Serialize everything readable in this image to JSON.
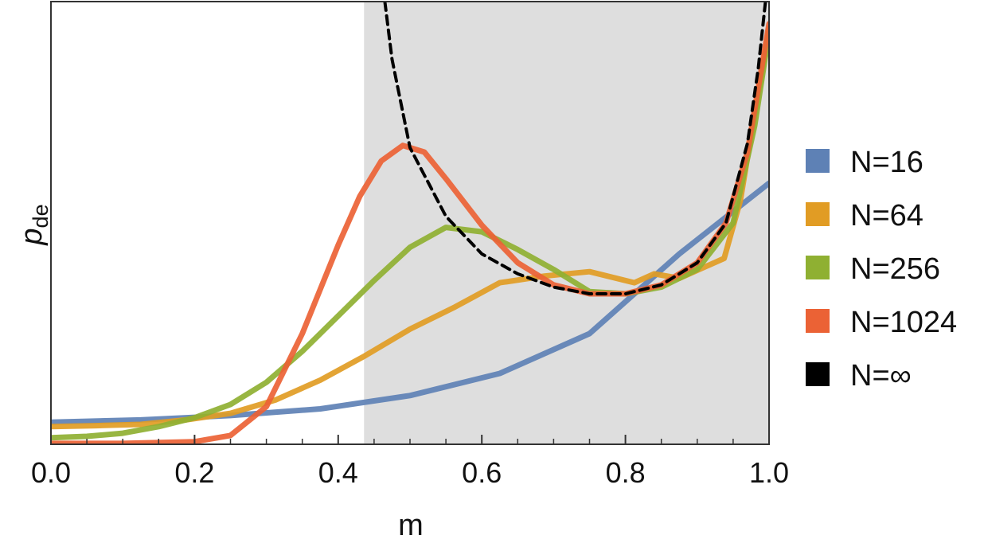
{
  "chart_data": {
    "type": "line",
    "xlabel": "m",
    "ylabel": "p",
    "ylabel_sub": "de",
    "xlim": [
      0,
      1
    ],
    "ylim": [
      0,
      1
    ],
    "x_ticks": [
      "0.0",
      "0.2",
      "0.4",
      "0.6",
      "0.8",
      "1.0"
    ],
    "x_tick_values": [
      0,
      0.2,
      0.4,
      0.6,
      0.8,
      1.0
    ],
    "shaded_region": {
      "x": [
        0.436,
        1.0
      ],
      "color": "#dedede"
    },
    "legend_position": "right",
    "series": [
      {
        "name": "N=16",
        "color": "#5e81b5",
        "style": "solid",
        "points": [
          [
            0,
            0.05
          ],
          [
            0.125,
            0.055
          ],
          [
            0.25,
            0.065
          ],
          [
            0.375,
            0.08
          ],
          [
            0.5,
            0.11
          ],
          [
            0.625,
            0.16
          ],
          [
            0.75,
            0.25
          ],
          [
            0.875,
            0.43
          ],
          [
            1.0,
            0.59
          ]
        ]
      },
      {
        "name": "N=64",
        "color": "#e19c24",
        "style": "solid",
        "points": [
          [
            0,
            0.04
          ],
          [
            0.0625,
            0.042
          ],
          [
            0.125,
            0.045
          ],
          [
            0.1875,
            0.055
          ],
          [
            0.25,
            0.07
          ],
          [
            0.3125,
            0.1
          ],
          [
            0.375,
            0.145
          ],
          [
            0.4375,
            0.2
          ],
          [
            0.5,
            0.26
          ],
          [
            0.5625,
            0.31
          ],
          [
            0.625,
            0.365
          ],
          [
            0.6875,
            0.38
          ],
          [
            0.75,
            0.39
          ],
          [
            0.8125,
            0.365
          ],
          [
            0.84,
            0.385
          ],
          [
            0.875,
            0.375
          ],
          [
            0.9375,
            0.42
          ],
          [
            0.96,
            0.55
          ],
          [
            1.0,
            0.94
          ]
        ]
      },
      {
        "name": "N=256",
        "color": "#8fb032",
        "style": "solid",
        "points": [
          [
            0,
            0.015
          ],
          [
            0.05,
            0.018
          ],
          [
            0.1,
            0.025
          ],
          [
            0.15,
            0.04
          ],
          [
            0.2,
            0.06
          ],
          [
            0.25,
            0.09
          ],
          [
            0.3,
            0.14
          ],
          [
            0.35,
            0.21
          ],
          [
            0.4,
            0.29
          ],
          [
            0.45,
            0.37
          ],
          [
            0.5,
            0.445
          ],
          [
            0.55,
            0.49
          ],
          [
            0.6,
            0.48
          ],
          [
            0.65,
            0.44
          ],
          [
            0.7,
            0.395
          ],
          [
            0.75,
            0.345
          ],
          [
            0.8,
            0.34
          ],
          [
            0.85,
            0.355
          ],
          [
            0.9,
            0.395
          ],
          [
            0.95,
            0.5
          ],
          [
            0.98,
            0.72
          ],
          [
            1.0,
            0.93
          ]
        ]
      },
      {
        "name": "N=1024",
        "color": "#eb6235",
        "style": "solid",
        "points": [
          [
            0,
            0.002
          ],
          [
            0.1,
            0.002
          ],
          [
            0.2,
            0.006
          ],
          [
            0.25,
            0.02
          ],
          [
            0.3,
            0.085
          ],
          [
            0.35,
            0.25
          ],
          [
            0.4,
            0.45
          ],
          [
            0.43,
            0.56
          ],
          [
            0.46,
            0.64
          ],
          [
            0.49,
            0.675
          ],
          [
            0.52,
            0.66
          ],
          [
            0.55,
            0.6
          ],
          [
            0.6,
            0.495
          ],
          [
            0.65,
            0.41
          ],
          [
            0.7,
            0.36
          ],
          [
            0.75,
            0.34
          ],
          [
            0.8,
            0.34
          ],
          [
            0.85,
            0.36
          ],
          [
            0.9,
            0.41
          ],
          [
            0.94,
            0.5
          ],
          [
            0.97,
            0.66
          ],
          [
            1.0,
            0.95
          ]
        ]
      },
      {
        "name": "N=∞",
        "color": "#000000",
        "style": "dashed",
        "points": [
          [
            0.465,
            1.0
          ],
          [
            0.475,
            0.87
          ],
          [
            0.5,
            0.67
          ],
          [
            0.55,
            0.515
          ],
          [
            0.6,
            0.43
          ],
          [
            0.65,
            0.385
          ],
          [
            0.7,
            0.355
          ],
          [
            0.75,
            0.34
          ],
          [
            0.8,
            0.34
          ],
          [
            0.85,
            0.36
          ],
          [
            0.9,
            0.41
          ],
          [
            0.94,
            0.5
          ],
          [
            0.97,
            0.68
          ],
          [
            0.985,
            0.85
          ],
          [
            0.995,
            1.0
          ]
        ]
      }
    ]
  }
}
